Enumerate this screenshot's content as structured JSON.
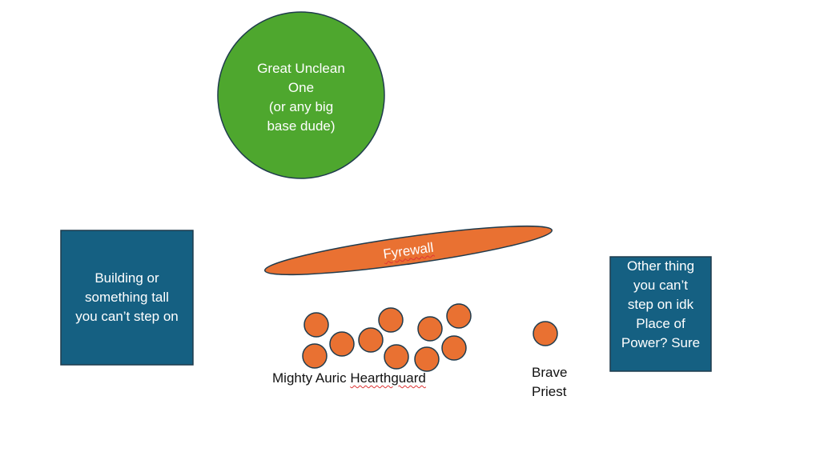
{
  "colors": {
    "green": "#4ea72e",
    "orange": "#e97132",
    "teal": "#156082",
    "outline": "#1f3b4d"
  },
  "shapes": {
    "big_base": {
      "lines": [
        "Great Unclean",
        "One",
        "(or any big",
        "base dude)"
      ]
    },
    "building_left": {
      "lines": [
        "Building or",
        "something tall",
        "you can’t step on"
      ]
    },
    "building_right": {
      "lines": [
        "Other thing",
        "you can’t",
        "step on idk",
        "Place of",
        "Power? Sure"
      ]
    },
    "fyrewall": {
      "label": "Fyrewall"
    },
    "hearthguard": {
      "label_prefix": "Mighty Auric ",
      "label_suffix": "Hearthguard",
      "model_count": 10
    },
    "priest": {
      "lines": [
        "Brave",
        "Priest"
      ]
    }
  }
}
